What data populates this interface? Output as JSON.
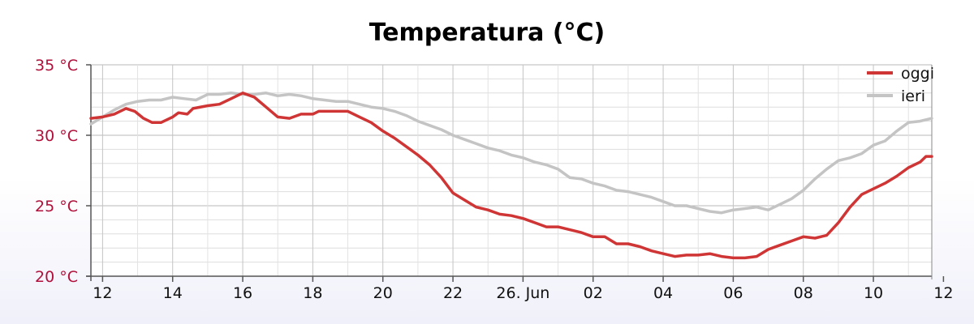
{
  "chart_data": {
    "type": "line",
    "title": "Temperatura (°C)",
    "xlabel": "",
    "ylabel": "",
    "ylim": [
      20,
      35
    ],
    "xlim": [
      "2024-06-25 11:40",
      "2024-06-26 11:40"
    ],
    "grid": true,
    "legend_position": "top-right",
    "y_ticks": [
      {
        "value": 20,
        "label": "20 °C"
      },
      {
        "value": 25,
        "label": "25 °C"
      },
      {
        "value": 30,
        "label": "30 °C"
      },
      {
        "value": 35,
        "label": "35 °C"
      }
    ],
    "x_ticks": [
      {
        "value": "2024-06-25 12:00",
        "label": "12"
      },
      {
        "value": "2024-06-25 14:00",
        "label": "14"
      },
      {
        "value": "2024-06-25 16:00",
        "label": "16"
      },
      {
        "value": "2024-06-25 18:00",
        "label": "18"
      },
      {
        "value": "2024-06-25 20:00",
        "label": "20"
      },
      {
        "value": "2024-06-25 22:00",
        "label": "22"
      },
      {
        "value": "2024-06-26 00:00",
        "label": "26. Jun"
      },
      {
        "value": "2024-06-26 02:00",
        "label": "02"
      },
      {
        "value": "2024-06-26 04:00",
        "label": "04"
      },
      {
        "value": "2024-06-26 06:00",
        "label": "06"
      },
      {
        "value": "2024-06-26 08:00",
        "label": "08"
      },
      {
        "value": "2024-06-26 10:00",
        "label": "10"
      },
      {
        "value": "2024-06-26 12:00",
        "label": "12"
      }
    ],
    "series": [
      {
        "name": "oggi",
        "color": "#d03535",
        "points": [
          [
            "2024-06-25 11:40",
            31.2
          ],
          [
            "2024-06-25 12:00",
            31.3
          ],
          [
            "2024-06-25 12:20",
            31.5
          ],
          [
            "2024-06-25 12:40",
            31.9
          ],
          [
            "2024-06-25 12:55",
            31.7
          ],
          [
            "2024-06-25 13:10",
            31.2
          ],
          [
            "2024-06-25 13:25",
            30.9
          ],
          [
            "2024-06-25 13:40",
            30.9
          ],
          [
            "2024-06-25 14:00",
            31.3
          ],
          [
            "2024-06-25 14:10",
            31.6
          ],
          [
            "2024-06-25 14:25",
            31.5
          ],
          [
            "2024-06-25 14:35",
            31.9
          ],
          [
            "2024-06-25 15:00",
            32.1
          ],
          [
            "2024-06-25 15:20",
            32.2
          ],
          [
            "2024-06-25 15:40",
            32.6
          ],
          [
            "2024-06-25 16:00",
            33.0
          ],
          [
            "2024-06-25 16:20",
            32.7
          ],
          [
            "2024-06-25 16:40",
            32.0
          ],
          [
            "2024-06-25 17:00",
            31.3
          ],
          [
            "2024-06-25 17:20",
            31.2
          ],
          [
            "2024-06-25 17:40",
            31.5
          ],
          [
            "2024-06-25 18:00",
            31.5
          ],
          [
            "2024-06-25 18:10",
            31.7
          ],
          [
            "2024-06-25 19:00",
            31.7
          ],
          [
            "2024-06-25 19:20",
            31.3
          ],
          [
            "2024-06-25 19:40",
            30.9
          ],
          [
            "2024-06-25 20:00",
            30.3
          ],
          [
            "2024-06-25 20:20",
            29.8
          ],
          [
            "2024-06-25 20:40",
            29.2
          ],
          [
            "2024-06-25 21:00",
            28.6
          ],
          [
            "2024-06-25 21:20",
            27.9
          ],
          [
            "2024-06-25 21:40",
            27.0
          ],
          [
            "2024-06-25 22:00",
            25.9
          ],
          [
            "2024-06-25 22:20",
            25.4
          ],
          [
            "2024-06-25 22:40",
            24.9
          ],
          [
            "2024-06-25 23:00",
            24.7
          ],
          [
            "2024-06-25 23:20",
            24.4
          ],
          [
            "2024-06-25 23:40",
            24.3
          ],
          [
            "2024-06-26 00:00",
            24.1
          ],
          [
            "2024-06-26 00:20",
            23.8
          ],
          [
            "2024-06-26 00:40",
            23.5
          ],
          [
            "2024-06-26 01:00",
            23.5
          ],
          [
            "2024-06-26 01:20",
            23.3
          ],
          [
            "2024-06-26 01:40",
            23.1
          ],
          [
            "2024-06-26 02:00",
            22.8
          ],
          [
            "2024-06-26 02:20",
            22.8
          ],
          [
            "2024-06-26 02:40",
            22.3
          ],
          [
            "2024-06-26 03:00",
            22.3
          ],
          [
            "2024-06-26 03:20",
            22.1
          ],
          [
            "2024-06-26 03:40",
            21.8
          ],
          [
            "2024-06-26 04:00",
            21.6
          ],
          [
            "2024-06-26 04:20",
            21.4
          ],
          [
            "2024-06-26 04:40",
            21.5
          ],
          [
            "2024-06-26 05:00",
            21.5
          ],
          [
            "2024-06-26 05:20",
            21.6
          ],
          [
            "2024-06-26 05:40",
            21.4
          ],
          [
            "2024-06-26 06:00",
            21.3
          ],
          [
            "2024-06-26 06:20",
            21.3
          ],
          [
            "2024-06-26 06:40",
            21.4
          ],
          [
            "2024-06-26 07:00",
            21.9
          ],
          [
            "2024-06-26 07:20",
            22.2
          ],
          [
            "2024-06-26 07:40",
            22.5
          ],
          [
            "2024-06-26 08:00",
            22.8
          ],
          [
            "2024-06-26 08:20",
            22.7
          ],
          [
            "2024-06-26 08:40",
            22.9
          ],
          [
            "2024-06-26 09:00",
            23.8
          ],
          [
            "2024-06-26 09:20",
            24.9
          ],
          [
            "2024-06-26 09:40",
            25.8
          ],
          [
            "2024-06-26 10:00",
            26.2
          ],
          [
            "2024-06-26 10:20",
            26.6
          ],
          [
            "2024-06-26 10:40",
            27.1
          ],
          [
            "2024-06-26 11:00",
            27.7
          ],
          [
            "2024-06-26 11:20",
            28.1
          ],
          [
            "2024-06-26 11:30",
            28.5
          ],
          [
            "2024-06-26 11:40",
            28.5
          ]
        ]
      },
      {
        "name": "ieri",
        "color": "#c4c4c4",
        "points": [
          [
            "2024-06-25 11:40",
            30.8
          ],
          [
            "2024-06-25 12:00",
            31.3
          ],
          [
            "2024-06-25 12:20",
            31.8
          ],
          [
            "2024-06-25 12:40",
            32.2
          ],
          [
            "2024-06-25 13:00",
            32.4
          ],
          [
            "2024-06-25 13:20",
            32.5
          ],
          [
            "2024-06-25 13:40",
            32.5
          ],
          [
            "2024-06-25 14:00",
            32.7
          ],
          [
            "2024-06-25 14:20",
            32.6
          ],
          [
            "2024-06-25 14:40",
            32.5
          ],
          [
            "2024-06-25 15:00",
            32.9
          ],
          [
            "2024-06-25 15:20",
            32.9
          ],
          [
            "2024-06-25 15:40",
            33.0
          ],
          [
            "2024-06-25 16:00",
            32.9
          ],
          [
            "2024-06-25 16:20",
            32.9
          ],
          [
            "2024-06-25 16:40",
            33.0
          ],
          [
            "2024-06-25 17:00",
            32.8
          ],
          [
            "2024-06-25 17:20",
            32.9
          ],
          [
            "2024-06-25 17:40",
            32.8
          ],
          [
            "2024-06-25 18:00",
            32.6
          ],
          [
            "2024-06-25 18:20",
            32.5
          ],
          [
            "2024-06-25 18:40",
            32.4
          ],
          [
            "2024-06-25 19:00",
            32.4
          ],
          [
            "2024-06-25 19:20",
            32.2
          ],
          [
            "2024-06-25 19:40",
            32.0
          ],
          [
            "2024-06-25 20:00",
            31.9
          ],
          [
            "2024-06-25 20:20",
            31.7
          ],
          [
            "2024-06-25 20:40",
            31.4
          ],
          [
            "2024-06-25 21:00",
            31.0
          ],
          [
            "2024-06-25 21:20",
            30.7
          ],
          [
            "2024-06-25 21:40",
            30.4
          ],
          [
            "2024-06-25 22:00",
            30.0
          ],
          [
            "2024-06-25 22:20",
            29.7
          ],
          [
            "2024-06-25 22:40",
            29.4
          ],
          [
            "2024-06-25 23:00",
            29.1
          ],
          [
            "2024-06-25 23:20",
            28.9
          ],
          [
            "2024-06-25 23:40",
            28.6
          ],
          [
            "2024-06-26 00:00",
            28.4
          ],
          [
            "2024-06-26 00:20",
            28.1
          ],
          [
            "2024-06-26 00:40",
            27.9
          ],
          [
            "2024-06-26 01:00",
            27.6
          ],
          [
            "2024-06-26 01:20",
            27.0
          ],
          [
            "2024-06-26 01:40",
            26.9
          ],
          [
            "2024-06-26 02:00",
            26.6
          ],
          [
            "2024-06-26 02:20",
            26.4
          ],
          [
            "2024-06-26 02:40",
            26.1
          ],
          [
            "2024-06-26 03:00",
            26.0
          ],
          [
            "2024-06-26 03:20",
            25.8
          ],
          [
            "2024-06-26 03:40",
            25.6
          ],
          [
            "2024-06-26 04:00",
            25.3
          ],
          [
            "2024-06-26 04:20",
            25.0
          ],
          [
            "2024-06-26 04:40",
            25.0
          ],
          [
            "2024-06-26 05:00",
            24.8
          ],
          [
            "2024-06-26 05:20",
            24.6
          ],
          [
            "2024-06-26 05:40",
            24.5
          ],
          [
            "2024-06-26 06:00",
            24.7
          ],
          [
            "2024-06-26 06:20",
            24.8
          ],
          [
            "2024-06-26 06:40",
            24.9
          ],
          [
            "2024-06-26 07:00",
            24.7
          ],
          [
            "2024-06-26 07:20",
            25.1
          ],
          [
            "2024-06-26 07:40",
            25.5
          ],
          [
            "2024-06-26 08:00",
            26.1
          ],
          [
            "2024-06-26 08:20",
            26.9
          ],
          [
            "2024-06-26 08:40",
            27.6
          ],
          [
            "2024-06-26 09:00",
            28.2
          ],
          [
            "2024-06-26 09:20",
            28.4
          ],
          [
            "2024-06-26 09:40",
            28.7
          ],
          [
            "2024-06-26 10:00",
            29.3
          ],
          [
            "2024-06-26 10:20",
            29.6
          ],
          [
            "2024-06-26 10:40",
            30.3
          ],
          [
            "2024-06-26 11:00",
            30.9
          ],
          [
            "2024-06-26 11:20",
            31.0
          ],
          [
            "2024-06-26 11:40",
            31.2
          ]
        ]
      }
    ]
  }
}
